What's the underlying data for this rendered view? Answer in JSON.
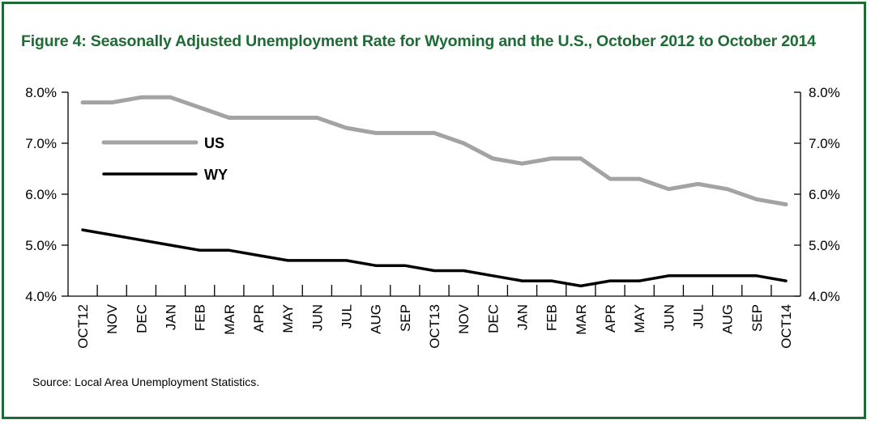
{
  "title": "Figure 4: Seasonally Adjusted Unemployment Rate for Wyoming and the U.S., October 2012 to October 2014",
  "source": "Source: Local Area Unemployment Statistics.",
  "colors": {
    "frame": "#1e6b35",
    "title": "#1e6b35",
    "us": "#a3a3a3",
    "wy": "#000000"
  },
  "chart_data": {
    "type": "line",
    "title": "Figure 4: Seasonally Adjusted Unemployment Rate for Wyoming and the U.S., October 2012 to October 2014",
    "categories": [
      "OCT12",
      "NOV",
      "DEC",
      "JAN",
      "FEB",
      "MAR",
      "APR",
      "MAY",
      "JUN",
      "JUL",
      "AUG",
      "SEP",
      "OCT13",
      "NOV",
      "DEC",
      "JAN",
      "FEB",
      "MAR",
      "APR",
      "MAY",
      "JUN",
      "JUL",
      "AUG",
      "SEP",
      "OCT14"
    ],
    "series": [
      {
        "name": "US",
        "color": "#a3a3a3",
        "values": [
          7.8,
          7.8,
          7.9,
          7.9,
          7.7,
          7.5,
          7.5,
          7.5,
          7.5,
          7.3,
          7.2,
          7.2,
          7.2,
          7.0,
          6.7,
          6.6,
          6.7,
          6.7,
          6.3,
          6.3,
          6.1,
          6.2,
          6.1,
          5.9,
          5.8
        ]
      },
      {
        "name": "WY",
        "color": "#000000",
        "values": [
          5.3,
          5.2,
          5.1,
          5.0,
          4.9,
          4.9,
          4.8,
          4.7,
          4.7,
          4.7,
          4.6,
          4.6,
          4.5,
          4.5,
          4.4,
          4.3,
          4.3,
          4.2,
          4.3,
          4.3,
          4.4,
          4.4,
          4.4,
          4.4,
          4.3
        ]
      }
    ],
    "ylim": [
      4.0,
      8.0
    ],
    "yticks": [
      "4.0%",
      "5.0%",
      "6.0%",
      "7.0%",
      "8.0%"
    ],
    "ytick_values": [
      4.0,
      5.0,
      6.0,
      7.0,
      8.0
    ],
    "xlabel": "",
    "ylabel": "",
    "secondary_y_axis": true,
    "grid": false,
    "legend_placement": "top-left"
  }
}
